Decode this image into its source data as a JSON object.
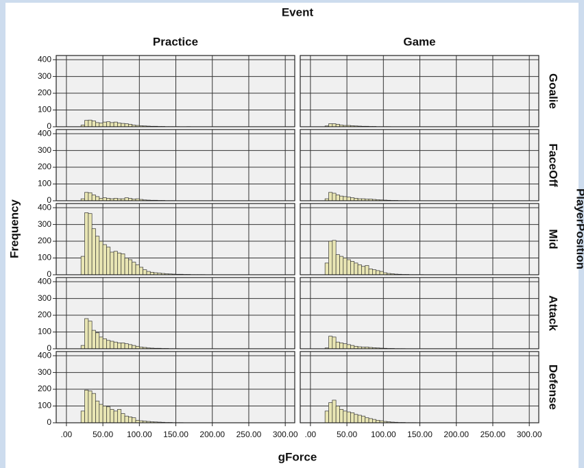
{
  "chart_data": {
    "type": "histogram",
    "title": "Event",
    "column_names": [
      "Practice",
      "Game"
    ],
    "row_names": [
      "Goalie",
      "FaceOff",
      "Mid",
      "Attack",
      "Defense"
    ],
    "row_title": "PlayerPosition",
    "x_label": "gForce",
    "y_label": "Frequency",
    "xlim": [
      -14,
      313
    ],
    "xticks": [
      {
        "value": 0,
        "label": ".00"
      },
      {
        "value": 50,
        "label": "50.00"
      },
      {
        "value": 100,
        "label": "100.00"
      },
      {
        "value": 150,
        "label": "150.00"
      },
      {
        "value": 200,
        "label": "200.00"
      },
      {
        "value": 250,
        "label": "250.00"
      },
      {
        "value": 300,
        "label": "300.00"
      }
    ],
    "ylim": [
      0,
      425
    ],
    "yticks": [
      0,
      100,
      200,
      300,
      400
    ],
    "grid": true,
    "color": "#e9e6b4",
    "bins": [
      20,
      25,
      30,
      35,
      40,
      45,
      50,
      55,
      60,
      65,
      70,
      75,
      80,
      85,
      90,
      95,
      100,
      105,
      110,
      115,
      120,
      125,
      130,
      135,
      140,
      145,
      150,
      155,
      160,
      165,
      170,
      175,
      180,
      185,
      190,
      195,
      200
    ],
    "panels": [
      {
        "values": [
          10,
          38,
          40,
          35,
          25,
          22,
          28,
          30,
          25,
          28,
          22,
          20,
          18,
          15,
          10,
          8,
          6,
          5,
          4,
          3,
          3,
          2,
          2,
          1,
          1,
          1,
          1,
          0,
          0,
          1,
          0,
          0,
          0,
          0,
          0,
          0
        ]
      },
      {
        "values": [
          5,
          18,
          18,
          15,
          10,
          8,
          8,
          6,
          5,
          4,
          3,
          3,
          2,
          2,
          1,
          1,
          1,
          1,
          0,
          0,
          0,
          0,
          0,
          0,
          0,
          0,
          0,
          0,
          0,
          0,
          0,
          0,
          0,
          0,
          0,
          0
        ]
      },
      {
        "values": [
          12,
          50,
          48,
          35,
          25,
          15,
          18,
          15,
          12,
          15,
          12,
          12,
          18,
          14,
          10,
          12,
          8,
          5,
          4,
          3,
          3,
          2,
          2,
          1,
          1,
          1,
          0,
          0,
          0,
          0,
          0,
          0,
          0,
          0,
          0,
          0
        ]
      },
      {
        "values": [
          12,
          50,
          45,
          35,
          28,
          25,
          22,
          18,
          15,
          12,
          12,
          10,
          10,
          8,
          6,
          5,
          4,
          3,
          2,
          2,
          1,
          1,
          1,
          0,
          0,
          0,
          0,
          0,
          0,
          0,
          0,
          0,
          0,
          0,
          0,
          0
        ]
      },
      {
        "values": [
          110,
          370,
          365,
          275,
          230,
          200,
          180,
          165,
          135,
          140,
          130,
          125,
          100,
          90,
          75,
          60,
          45,
          30,
          20,
          15,
          12,
          10,
          8,
          6,
          5,
          4,
          3,
          3,
          2,
          2,
          1,
          1,
          1,
          1,
          0,
          0
        ]
      },
      {
        "values": [
          70,
          200,
          205,
          120,
          110,
          100,
          90,
          80,
          70,
          60,
          50,
          55,
          35,
          30,
          25,
          20,
          12,
          8,
          6,
          4,
          3,
          2,
          2,
          1,
          1,
          1,
          1,
          0,
          0,
          0,
          0,
          0,
          0,
          0,
          0,
          0
        ]
      },
      {
        "values": [
          20,
          180,
          165,
          110,
          95,
          70,
          60,
          50,
          45,
          40,
          35,
          35,
          30,
          25,
          20,
          15,
          10,
          8,
          5,
          4,
          3,
          3,
          2,
          2,
          1,
          1,
          1,
          0,
          0,
          0,
          0,
          0,
          0,
          0,
          0,
          0
        ]
      },
      {
        "values": [
          5,
          75,
          70,
          40,
          35,
          30,
          25,
          20,
          15,
          12,
          10,
          10,
          8,
          6,
          5,
          4,
          3,
          2,
          2,
          1,
          1,
          1,
          0,
          0,
          0,
          0,
          0,
          0,
          0,
          0,
          0,
          0,
          0,
          0,
          0,
          0
        ]
      },
      {
        "values": [
          70,
          195,
          190,
          175,
          130,
          110,
          100,
          95,
          80,
          70,
          80,
          55,
          40,
          35,
          30,
          15,
          12,
          10,
          8,
          6,
          5,
          4,
          3,
          2,
          2,
          1,
          1,
          1,
          0,
          0,
          0,
          0,
          0,
          0,
          0,
          0
        ]
      },
      {
        "values": [
          70,
          120,
          135,
          100,
          80,
          70,
          65,
          60,
          50,
          45,
          40,
          30,
          25,
          20,
          15,
          12,
          8,
          6,
          4,
          3,
          2,
          2,
          1,
          1,
          1,
          0,
          0,
          0,
          0,
          0,
          0,
          0,
          0,
          0,
          0,
          0
        ]
      }
    ]
  }
}
